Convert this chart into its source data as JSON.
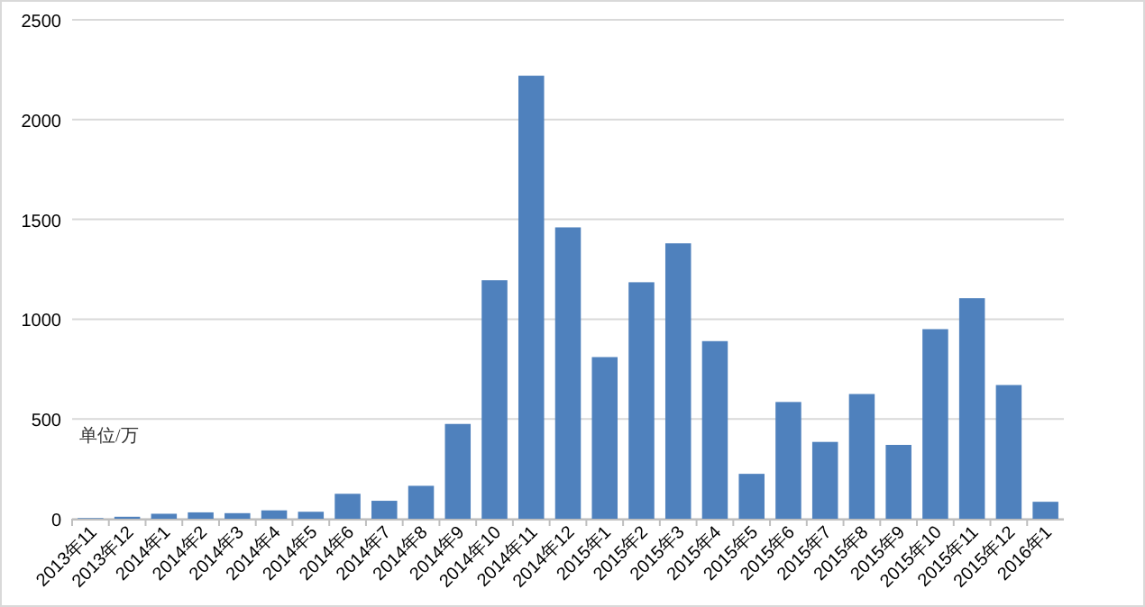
{
  "chart_data": {
    "type": "bar",
    "categories": [
      "2013年11",
      "2013年12",
      "2014年1",
      "2014年2",
      "2014年3",
      "2014年4",
      "2014年5",
      "2014年6",
      "2014年7",
      "2014年8",
      "2014年9",
      "2014年10",
      "2014年11",
      "2014年12",
      "2015年1",
      "2015年2",
      "2015年3",
      "2015年4",
      "2015年5",
      "2015年6",
      "2015年7",
      "2015年8",
      "2015年9",
      "2015年10",
      "2015年11",
      "2015年12",
      "2016年1"
    ],
    "values": [
      3,
      10,
      25,
      32,
      28,
      42,
      35,
      125,
      90,
      165,
      475,
      1195,
      2220,
      1460,
      810,
      1185,
      1380,
      890,
      225,
      585,
      385,
      625,
      370,
      950,
      1105,
      670,
      85
    ],
    "color": "#4f81bd",
    "ylim": [
      0,
      2500
    ],
    "yticks": [
      0,
      500,
      1000,
      1500,
      2000,
      2500
    ],
    "grid": "y",
    "annotations": [
      "单位/万"
    ]
  }
}
